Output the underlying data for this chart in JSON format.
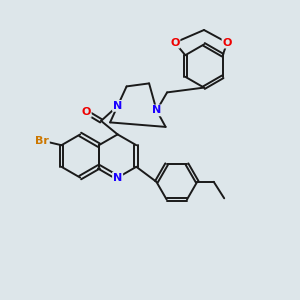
{
  "background_color": "#dde6ea",
  "bond_color": "#1a1a1a",
  "atom_colors": {
    "N": "#1a00ff",
    "O": "#ee0000",
    "Br": "#cc7700",
    "C": "#1a1a1a"
  },
  "figsize": [
    3.0,
    3.0
  ],
  "dpi": 100,
  "lw": 1.4,
  "fs": 7.5
}
